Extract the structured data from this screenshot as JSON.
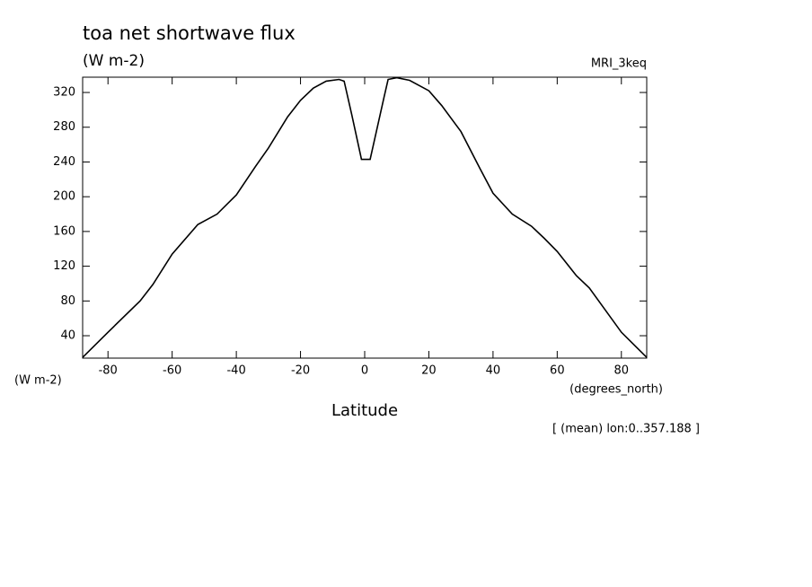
{
  "chart_data": {
    "type": "line",
    "title": "toa net shortwave flux",
    "subtitle": "(W m-2)",
    "dataset_label": "MRI_3keq",
    "y_axis_label": "(W m-2)",
    "x_units_label": "(degrees_north)",
    "x_axis_label": "Latitude",
    "annotation": "[ (mean) lon:0..357.188 ]",
    "x": [
      -87.9,
      -80,
      -70,
      -66,
      -60,
      -52,
      -46,
      -40,
      -34,
      -30,
      -24,
      -20,
      -16,
      -12,
      -8,
      -6.4,
      -4,
      -2,
      -1,
      1.7,
      4,
      6,
      7.3,
      10,
      14,
      20,
      24,
      30,
      36,
      40,
      46,
      52,
      56,
      60,
      66,
      70,
      80,
      87.9
    ],
    "series": [
      {
        "color": "#000000",
        "values": [
          15,
          44,
          80,
          99,
          134,
          168,
          180,
          202,
          235,
          256,
          292,
          311,
          325,
          333,
          335,
          333,
          294,
          260,
          243,
          243,
          281,
          314,
          335,
          337,
          334,
          322,
          305,
          275,
          232,
          204,
          180,
          166,
          152,
          137,
          109,
          95,
          44,
          15
        ]
      }
    ],
    "xlim": [
      -87.9,
      87.9
    ],
    "ylim": [
      14.2,
      337.6
    ],
    "xticks": [
      -80,
      -60,
      -40,
      -20,
      0,
      20,
      40,
      60,
      80
    ],
    "yticks": [
      40,
      80,
      120,
      160,
      200,
      240,
      280,
      320
    ]
  }
}
